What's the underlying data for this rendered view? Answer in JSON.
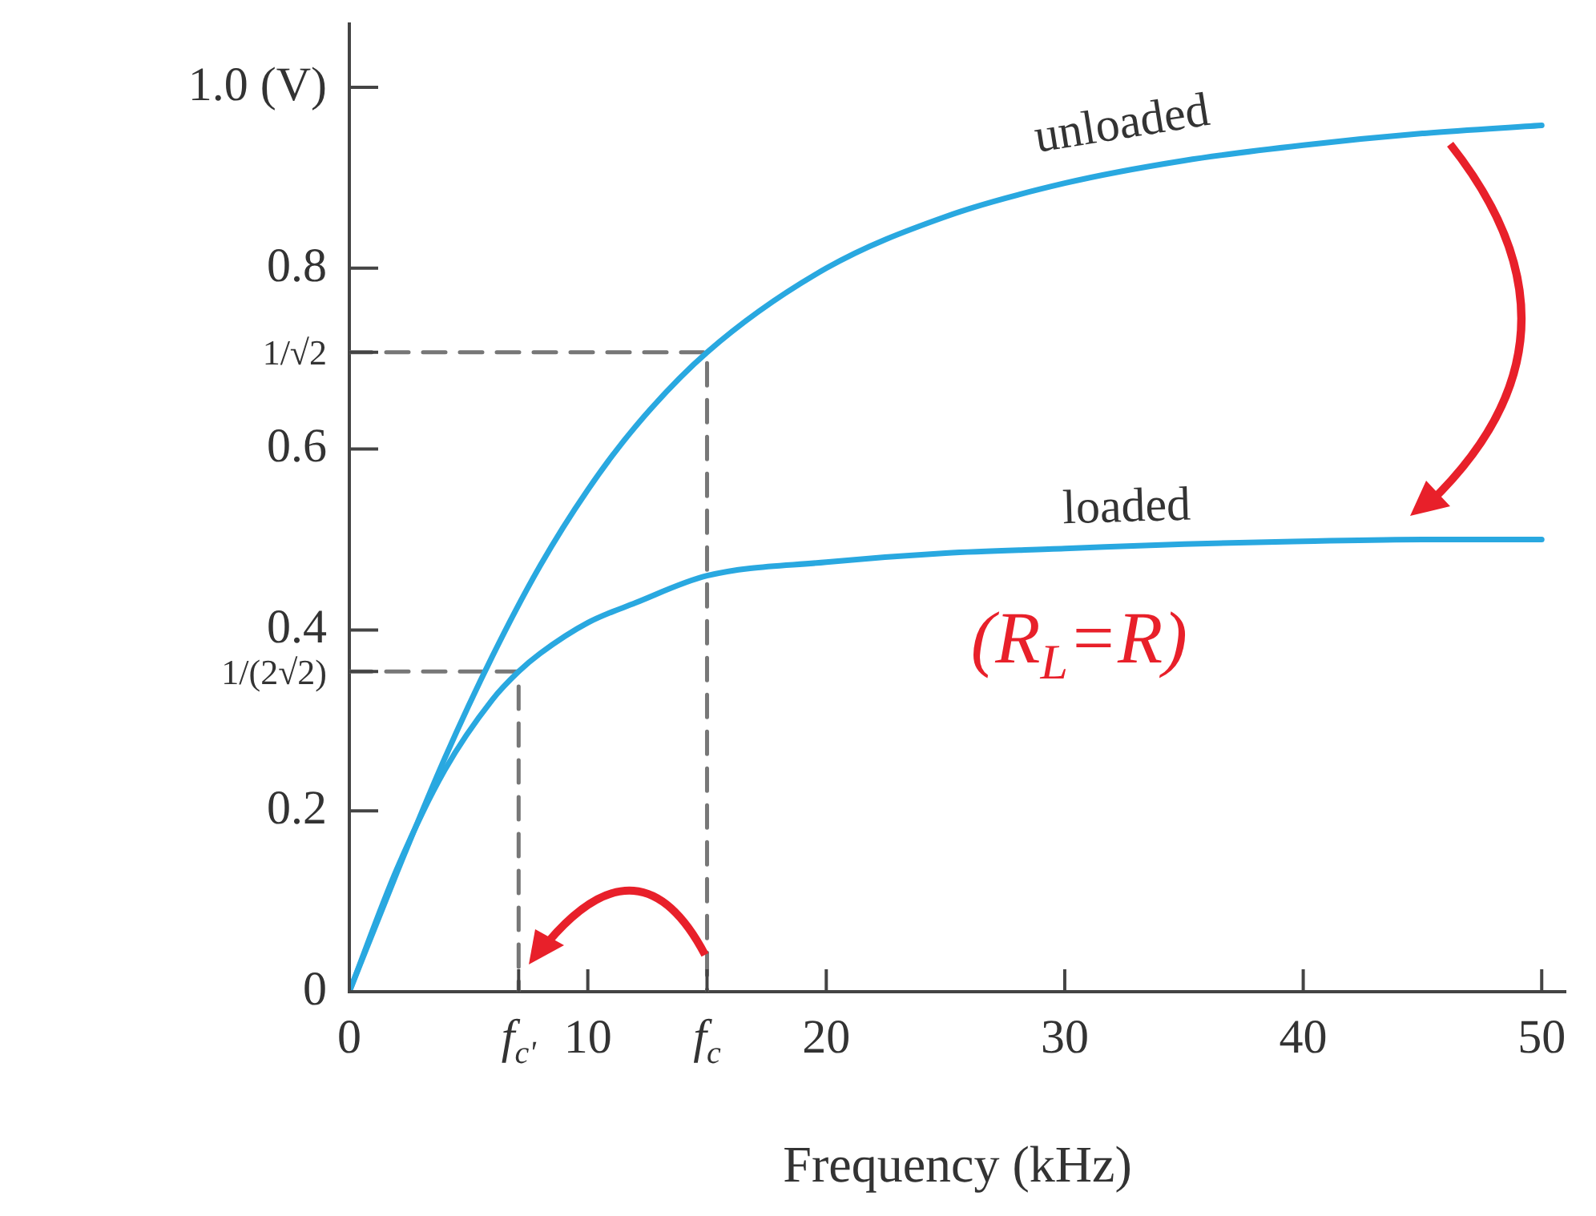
{
  "chart_data": {
    "type": "line",
    "xlabel": "Frequency (kHz)",
    "xlim": [
      0,
      51
    ],
    "ylim": [
      0,
      1.07
    ],
    "xticks": [
      0,
      {
        "value": 7.1,
        "label": "f$_{c'}$"
      },
      10,
      {
        "value": 15,
        "label": "f$_{c}$"
      },
      20,
      30,
      40,
      50
    ],
    "yticks": [
      0,
      0.2,
      {
        "value": 0.354,
        "label": "1/(2√2)"
      },
      0.4,
      0.6,
      {
        "value": 0.707,
        "label": "1/√2"
      },
      0.8,
      {
        "value": 1,
        "label": "1.0 (V)"
      }
    ],
    "marker": "none",
    "legend": false,
    "annotations": [
      "(R$_{L}$=R)"
    ],
    "series": [
      {
        "name": "unloaded",
        "color": "#29a8e0",
        "x": [
          0,
          2,
          4,
          6,
          8,
          10,
          12,
          15,
          20,
          25,
          30,
          35,
          40,
          45,
          50
        ],
        "values": [
          0,
          0.132,
          0.258,
          0.371,
          0.471,
          0.555,
          0.625,
          0.707,
          0.8,
          0.857,
          0.894,
          0.919,
          0.936,
          0.949,
          0.958
        ]
      },
      {
        "name": "loaded",
        "color": "#29a8e0",
        "x": [
          0,
          2,
          4,
          6,
          7.1,
          8,
          10,
          12,
          15,
          20,
          25,
          30,
          35,
          40,
          45,
          50
        ],
        "values": [
          0,
          0.136,
          0.245,
          0.323,
          0.354,
          0.374,
          0.408,
          0.43,
          0.46,
          0.475,
          0.485,
          0.49,
          0.495,
          0.498,
          0.5,
          0.5
        ]
      },
      {
        "color": "#777777",
        "line_style": "dashed",
        "x": [
          0,
          15,
          15
        ],
        "values": [
          0.707,
          0.707,
          0
        ]
      },
      {
        "color": "#777777",
        "line_style": "dashed",
        "x": [
          0,
          7.1,
          7.1
        ],
        "values": [
          0.354,
          0.354,
          0
        ]
      }
    ]
  }
}
